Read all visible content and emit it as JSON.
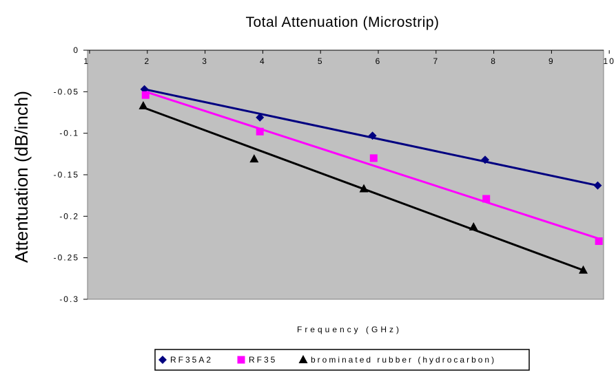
{
  "chart_data": {
    "type": "scatter",
    "title": "Total Attenuation (Microstrip)",
    "xlabel": "Frequency (GHz)",
    "ylabel": "Attentuation (dB/inch)",
    "xlim": [
      1,
      10
    ],
    "ylim": [
      -0.3,
      0
    ],
    "xticks": [
      1,
      2,
      3,
      4,
      5,
      6,
      7,
      8,
      9,
      10
    ],
    "yticks": [
      0,
      -0.05,
      -0.1,
      -0.15,
      -0.2,
      -0.25,
      -0.3
    ],
    "ytick_labels": [
      "0",
      "-0.05",
      "-0.1",
      "-0.15",
      "-0.2",
      "-0.25",
      "-0.3"
    ],
    "grid": false,
    "plot_background": "#c0c0c0",
    "legend_position": "bottom",
    "trendlines": true,
    "series": [
      {
        "name": "RF35A2",
        "marker": "diamond",
        "color": "#000080",
        "x": [
          1.95,
          3.95,
          5.9,
          7.85,
          9.8
        ],
        "y": [
          -0.047,
          -0.081,
          -0.103,
          -0.132,
          -0.163
        ],
        "trend_x": [
          1.95,
          9.8
        ],
        "trend_y": [
          -0.047,
          -0.163
        ]
      },
      {
        "name": "RF35",
        "marker": "square",
        "color": "#ff00ff",
        "x": [
          1.97,
          3.95,
          5.92,
          7.87,
          9.82
        ],
        "y": [
          -0.054,
          -0.098,
          -0.13,
          -0.179,
          -0.23
        ],
        "trend_x": [
          1.97,
          9.82
        ],
        "trend_y": [
          -0.05,
          -0.227
        ]
      },
      {
        "name": "brominated rubber (hydrocarbon)",
        "marker": "triangle",
        "color": "#000000",
        "x": [
          1.93,
          3.85,
          5.75,
          7.65,
          9.55
        ],
        "y": [
          -0.067,
          -0.131,
          -0.167,
          -0.213,
          -0.265
        ],
        "trend_x": [
          1.93,
          9.55
        ],
        "trend_y": [
          -0.069,
          -0.265
        ]
      }
    ]
  }
}
